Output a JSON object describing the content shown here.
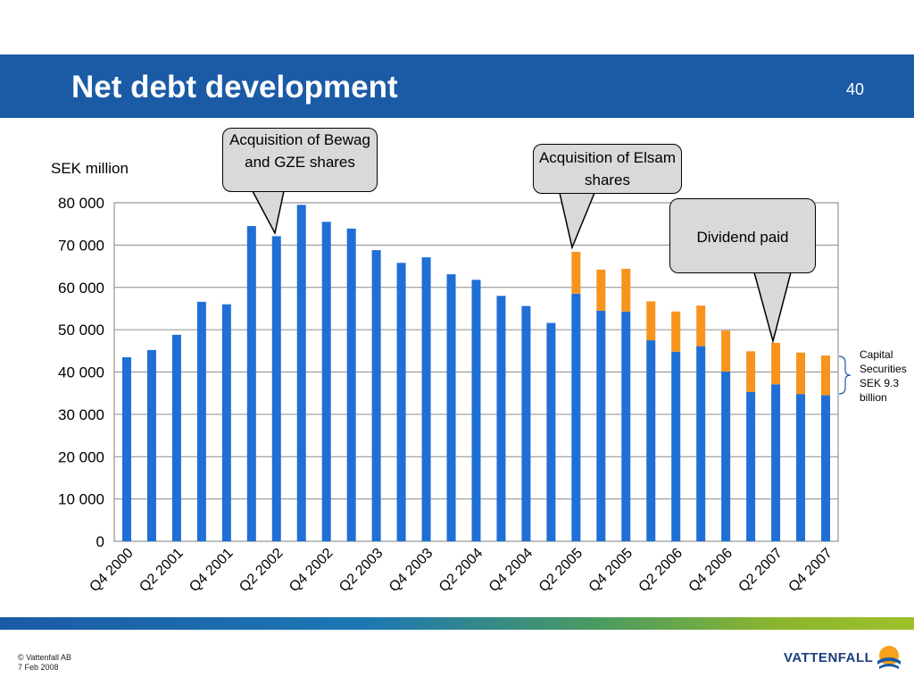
{
  "slide": {
    "title": "Net debt development",
    "number": "40",
    "copyright": "© Vattenfall AB",
    "date": "7 Feb 2008",
    "logo_text": "VATTENFALL"
  },
  "colors": {
    "header": "#1b5ba6",
    "bar_blue": "#1f6fd6",
    "bar_orange": "#f7941d",
    "callout_fill": "#d9d9d9"
  },
  "annotations": {
    "unit": "SEK million",
    "callout_bewag": "Acquisition of Bewag and GZE shares",
    "callout_elsam": "Acquisition of Elsam shares",
    "callout_dividend": "Dividend paid",
    "capital_securities": [
      "Capital",
      "Securities",
      "SEK 9.3",
      "billion"
    ]
  },
  "chart_data": {
    "type": "bar",
    "stacked": true,
    "ylim": [
      0,
      80000
    ],
    "yticks": [
      0,
      10000,
      20000,
      30000,
      40000,
      50000,
      60000,
      70000,
      80000
    ],
    "ytick_labels": [
      "0",
      "10 000",
      "20 000",
      "30 000",
      "40 000",
      "50 000",
      "60 000",
      "70 000",
      "80 000"
    ],
    "grid": true,
    "categories": [
      "Q4 2000",
      "Q1 2001",
      "Q2 2001",
      "Q3 2001",
      "Q4 2001",
      "Q1 2002",
      "Q2 2002",
      "Q3 2002",
      "Q4 2002",
      "Q1 2003",
      "Q2 2003",
      "Q3 2003",
      "Q4 2003",
      "Q1 2004",
      "Q2 2004",
      "Q3 2004",
      "Q4 2004",
      "Q1 2005",
      "Q2 2005",
      "Q3 2005",
      "Q4 2005",
      "Q1 2006",
      "Q2 2006",
      "Q3 2006",
      "Q4 2006",
      "Q1 2007",
      "Q2 2007",
      "Q3 2007",
      "Q4 2007"
    ],
    "x_tick_labels": [
      "Q4 2000",
      "Q2 2001",
      "Q4 2001",
      "Q2 2002",
      "Q4 2002",
      "Q2 2003",
      "Q4 2003",
      "Q2 2004",
      "Q4 2004",
      "Q2 2005",
      "Q4 2005",
      "Q2 2006",
      "Q4 2006",
      "Q2 2007",
      "Q4 2007"
    ],
    "series": [
      {
        "color": "#1f6fd6",
        "values": [
          43500,
          45200,
          48800,
          56600,
          56000,
          74500,
          72100,
          79500,
          75500,
          73900,
          68800,
          65800,
          67100,
          63100,
          61800,
          58000,
          55600,
          51600,
          58500,
          54500,
          54300,
          47500,
          44800,
          46100,
          40100,
          35300,
          37100,
          34800,
          34500
        ]
      },
      {
        "color": "#f7941d",
        "values": [
          0,
          0,
          0,
          0,
          0,
          0,
          0,
          0,
          0,
          0,
          0,
          0,
          0,
          0,
          0,
          0,
          0,
          0,
          9900,
          9700,
          10100,
          9200,
          9500,
          9600,
          9700,
          9600,
          9800,
          9800,
          9400
        ]
      }
    ]
  }
}
